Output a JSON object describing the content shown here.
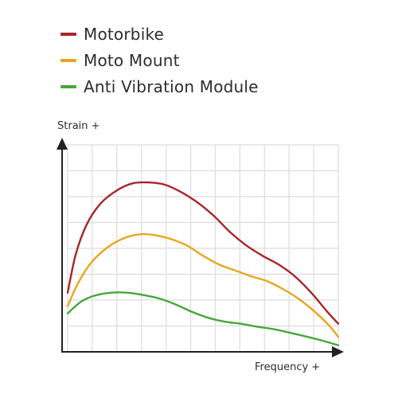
{
  "chart_data": {
    "type": "line",
    "title": "",
    "xlabel": "Frequency +",
    "ylabel": "Strain +",
    "xlim": [
      0,
      10
    ],
    "ylim": [
      0,
      7
    ],
    "grid": true,
    "legend_position": "top-left",
    "series": [
      {
        "name": "Motorbike",
        "color": "#a8262b",
        "x": [
          0,
          0.3,
          0.7,
          1.2,
          1.8,
          2.4,
          3.0,
          3.6,
          4.2,
          4.8,
          5.4,
          6.0,
          6.6,
          7.2,
          7.8,
          8.4,
          9.0,
          9.6,
          10.0
        ],
        "y": [
          2.0,
          3.3,
          4.3,
          5.0,
          5.45,
          5.7,
          5.73,
          5.65,
          5.4,
          5.05,
          4.6,
          4.05,
          3.6,
          3.25,
          2.95,
          2.55,
          2.0,
          1.35,
          0.95
        ]
      },
      {
        "name": "Moto Mount",
        "color": "#eaa51f",
        "x": [
          0,
          0.4,
          0.9,
          1.5,
          2.1,
          2.7,
          3.2,
          3.8,
          4.4,
          5.0,
          5.6,
          6.2,
          6.8,
          7.4,
          8.0,
          8.6,
          9.2,
          9.7,
          10.0
        ],
        "y": [
          1.55,
          2.35,
          3.05,
          3.55,
          3.85,
          3.98,
          3.95,
          3.82,
          3.6,
          3.25,
          2.95,
          2.75,
          2.55,
          2.38,
          2.1,
          1.75,
          1.3,
          0.85,
          0.5
        ]
      },
      {
        "name": "Anti Vibration Module",
        "color": "#45a83a",
        "x": [
          0,
          0.5,
          1.0,
          1.6,
          2.2,
          2.8,
          3.4,
          4.0,
          4.6,
          5.2,
          5.8,
          6.4,
          7.0,
          7.6,
          8.2,
          8.8,
          9.4,
          10.0
        ],
        "y": [
          1.3,
          1.7,
          1.9,
          2.0,
          2.0,
          1.92,
          1.8,
          1.6,
          1.35,
          1.15,
          1.02,
          0.95,
          0.85,
          0.77,
          0.65,
          0.52,
          0.38,
          0.22
        ]
      }
    ]
  }
}
